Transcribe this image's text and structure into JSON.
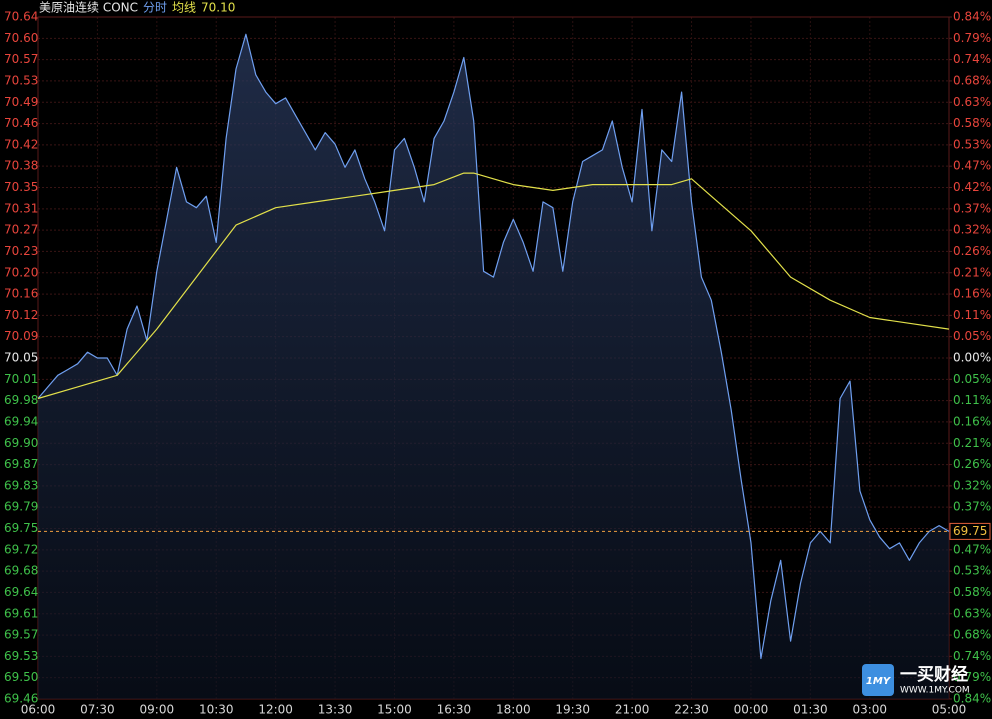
{
  "chart_data": {
    "type": "line",
    "title": "美原油连续 CONC",
    "legend_value": {
      "value": 70.1,
      "label": "70.10"
    },
    "up_color": "#e8453c",
    "down_color": "#3fc14a",
    "flat_color": "#e8e8e8",
    "grid": true,
    "xlim": [
      0,
      23
    ],
    "xticks": [
      {
        "value": 0,
        "label": "06:00"
      },
      {
        "value": 1.5,
        "label": "07:30"
      },
      {
        "value": 3,
        "label": "09:00"
      },
      {
        "value": 4.5,
        "label": "10:30"
      },
      {
        "value": 6,
        "label": "12:00"
      },
      {
        "value": 7.5,
        "label": "13:30"
      },
      {
        "value": 9,
        "label": "15:00"
      },
      {
        "value": 10.5,
        "label": "16:30"
      },
      {
        "value": 12,
        "label": "18:00"
      },
      {
        "value": 13.5,
        "label": "19:30"
      },
      {
        "value": 15,
        "label": "21:00"
      },
      {
        "value": 16.5,
        "label": "22:30"
      },
      {
        "value": 18,
        "label": "00:00"
      },
      {
        "value": 19.5,
        "label": "01:30"
      },
      {
        "value": 21,
        "label": "03:00"
      },
      {
        "value": 23,
        "label": "05:00"
      }
    ],
    "ylim": [
      69.46,
      70.64
    ],
    "yticks": [
      69.46,
      {
        "value": 69.4969,
        "label": "69.50"
      },
      {
        "value": 69.5338,
        "label": "69.53"
      },
      {
        "value": 69.5706,
        "label": "69.57"
      },
      {
        "value": 69.6075,
        "label": "69.61"
      },
      {
        "value": 69.6444,
        "label": "69.64"
      },
      {
        "value": 69.6813,
        "label": "69.68"
      },
      {
        "value": 69.7181,
        "label": "69.72"
      },
      {
        "value": 69.755,
        "label": "69.75"
      },
      {
        "value": 69.7919,
        "label": "69.79"
      },
      {
        "value": 69.8288,
        "label": "69.83"
      },
      {
        "value": 69.8656,
        "label": "69.87"
      },
      {
        "value": 69.9025,
        "label": "69.90"
      },
      {
        "value": 69.9394,
        "label": "69.94"
      },
      {
        "value": 69.9763,
        "label": "69.98"
      },
      {
        "value": 70.0131,
        "label": "70.01"
      },
      70.05,
      {
        "value": 70.0869,
        "label": "70.09"
      },
      {
        "value": 70.1238,
        "label": "70.12"
      },
      {
        "value": 70.1606,
        "label": "70.16"
      },
      {
        "value": 70.1975,
        "label": "70.20"
      },
      {
        "value": 70.2344,
        "label": "70.23"
      },
      {
        "value": 70.2713,
        "label": "70.27"
      },
      {
        "value": 70.3081,
        "label": "70.31"
      },
      {
        "value": 70.345,
        "label": "70.35"
      },
      {
        "value": 70.3819,
        "label": "70.38"
      },
      {
        "value": 70.4188,
        "label": "70.42"
      },
      {
        "value": 70.4556,
        "label": "70.46"
      },
      {
        "value": 70.4925,
        "label": "70.49"
      },
      {
        "value": 70.5294,
        "label": "70.53"
      },
      {
        "value": 70.5663,
        "label": "70.57"
      },
      {
        "value": 70.6031,
        "label": "70.60"
      },
      70.64
    ],
    "y2lim": [
      -0.84,
      0.84
    ],
    "y2ticks": [
      {
        "value": -0.84,
        "label": "0.84%"
      },
      {
        "value": -0.7875,
        "label": "0.79%"
      },
      {
        "value": -0.735,
        "label": "0.74%"
      },
      {
        "value": -0.6825,
        "label": "0.68%"
      },
      {
        "value": -0.63,
        "label": "0.63%"
      },
      {
        "value": -0.5775,
        "label": "0.58%"
      },
      {
        "value": -0.525,
        "label": "0.53%"
      },
      {
        "value": -0.4725,
        "label": "0.47%"
      },
      {
        "value": -0.42,
        "label": "0.42%"
      },
      {
        "value": -0.3675,
        "label": "0.37%"
      },
      {
        "value": -0.315,
        "label": "0.32%"
      },
      {
        "value": -0.2625,
        "label": "0.26%"
      },
      {
        "value": -0.21,
        "label": "0.21%"
      },
      {
        "value": -0.1575,
        "label": "0.16%"
      },
      {
        "value": -0.105,
        "label": "0.11%"
      },
      {
        "value": -0.0525,
        "label": "0.05%"
      },
      {
        "value": 0,
        "label": "0.00%"
      },
      {
        "value": 0.0525,
        "label": "0.05%"
      },
      {
        "value": 0.105,
        "label": "0.11%"
      },
      {
        "value": 0.1575,
        "label": "0.16%"
      },
      {
        "value": 0.21,
        "label": "0.21%"
      },
      {
        "value": 0.2625,
        "label": "0.26%"
      },
      {
        "value": 0.315,
        "label": "0.32%"
      },
      {
        "value": 0.3675,
        "label": "0.37%"
      },
      {
        "value": 0.42,
        "label": "0.42%"
      },
      {
        "value": 0.4725,
        "label": "0.47%"
      },
      {
        "value": 0.525,
        "label": "0.53%"
      },
      {
        "value": 0.5775,
        "label": "0.58%"
      },
      {
        "value": 0.63,
        "label": "0.63%"
      },
      {
        "value": 0.6825,
        "label": "0.68%"
      },
      {
        "value": 0.735,
        "label": "0.74%"
      },
      {
        "value": 0.7875,
        "label": "0.79%"
      },
      {
        "value": 0.84,
        "label": "0.84%"
      }
    ],
    "last_price": 69.75,
    "series": [
      {
        "name": "分时",
        "color": "#6f9ff0",
        "x": [
          0,
          0.25,
          0.5,
          0.75,
          1,
          1.25,
          1.5,
          1.75,
          2,
          2.25,
          2.5,
          2.75,
          3,
          3.25,
          3.5,
          3.75,
          4,
          4.25,
          4.5,
          4.75,
          5,
          5.25,
          5.5,
          5.75,
          6,
          6.25,
          6.5,
          6.75,
          7,
          7.25,
          7.5,
          7.75,
          8,
          8.25,
          8.5,
          8.75,
          9,
          9.25,
          9.5,
          9.75,
          10,
          10.25,
          10.5,
          10.75,
          11,
          11.25,
          11.5,
          11.75,
          12,
          12.25,
          12.5,
          12.75,
          13,
          13.25,
          13.5,
          13.75,
          14,
          14.25,
          14.5,
          14.75,
          15,
          15.25,
          15.5,
          15.75,
          16,
          16.25,
          16.5,
          16.75,
          17,
          17.25,
          17.5,
          17.75,
          18,
          18.25,
          18.5,
          18.75,
          19,
          19.25,
          19.5,
          19.75,
          20,
          20.25,
          20.5,
          20.75,
          21,
          21.25,
          21.5,
          21.75,
          22,
          22.25,
          22.5,
          22.75,
          23
        ],
        "values": [
          69.98,
          70.0,
          70.02,
          70.03,
          70.04,
          70.06,
          70.05,
          70.05,
          70.02,
          70.1,
          70.14,
          70.08,
          70.2,
          70.29,
          70.38,
          70.32,
          70.31,
          70.33,
          70.25,
          70.43,
          70.55,
          70.61,
          70.54,
          70.51,
          70.49,
          70.5,
          70.47,
          70.44,
          70.41,
          70.44,
          70.42,
          70.38,
          70.41,
          70.36,
          70.32,
          70.27,
          70.41,
          70.43,
          70.38,
          70.32,
          70.43,
          70.46,
          70.51,
          70.57,
          70.46,
          70.2,
          70.19,
          70.25,
          70.29,
          70.25,
          70.2,
          70.32,
          70.31,
          70.2,
          70.32,
          70.39,
          70.4,
          70.41,
          70.46,
          70.38,
          70.32,
          70.48,
          70.27,
          70.41,
          70.39,
          70.51,
          70.32,
          70.19,
          70.15,
          70.06,
          69.96,
          69.84,
          69.73,
          69.53,
          69.63,
          69.7,
          69.56,
          69.66,
          69.73,
          69.75,
          69.73,
          69.98,
          70.01,
          69.82,
          69.77,
          69.74,
          69.72,
          69.73,
          69.7,
          69.73,
          69.75,
          69.76,
          69.75
        ]
      },
      {
        "name": "均线",
        "color": "#e2e04a",
        "x": [
          0,
          1,
          2,
          3,
          4,
          5,
          6,
          7,
          8,
          9,
          10,
          10.75,
          11,
          12,
          13,
          14,
          15,
          16,
          16.5,
          17,
          18,
          19,
          20,
          21,
          22,
          23
        ],
        "values": [
          69.98,
          70.0,
          70.02,
          70.1,
          70.19,
          70.28,
          70.31,
          70.32,
          70.33,
          70.34,
          70.35,
          70.37,
          70.37,
          70.35,
          70.34,
          70.35,
          70.35,
          70.35,
          70.36,
          70.33,
          70.27,
          70.19,
          70.15,
          70.12,
          70.11,
          70.1
        ]
      }
    ],
    "watermark": {
      "logo": "1MY",
      "name": "一买财经",
      "url": "WWW.1MY.COM"
    }
  }
}
